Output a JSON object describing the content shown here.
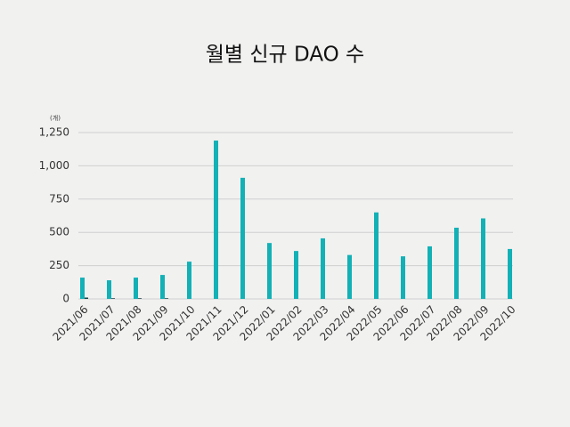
{
  "chart_data": {
    "type": "bar",
    "title": "월별 신규 DAO 수",
    "y_unit": "(개)",
    "categories": [
      "2021/06",
      "2021/07",
      "2021/08",
      "2021/09",
      "2021/10",
      "2021/11",
      "2021/12",
      "2022/01",
      "2022/02",
      "2022/03",
      "2022/04",
      "2022/05",
      "2022/06",
      "2022/07",
      "2022/08",
      "2022/09",
      "2022/10"
    ],
    "series": [
      {
        "color": "#12b1b6",
        "values": [
          160,
          140,
          160,
          180,
          280,
          1190,
          910,
          420,
          360,
          455,
          330,
          650,
          320,
          395,
          535,
          605,
          375
        ]
      },
      {
        "color": "#1d3f44",
        "values": [
          10,
          5,
          5,
          5,
          0,
          0,
          0,
          0,
          0,
          0,
          0,
          0,
          0,
          0,
          0,
          0,
          0
        ]
      }
    ],
    "ylim": [
      0,
      1250
    ],
    "yticks": [
      0,
      250,
      500,
      750,
      {
        "value": 1000,
        "label": "1,000"
      },
      {
        "value": 1250,
        "label": "1,250"
      }
    ],
    "grid": true
  }
}
